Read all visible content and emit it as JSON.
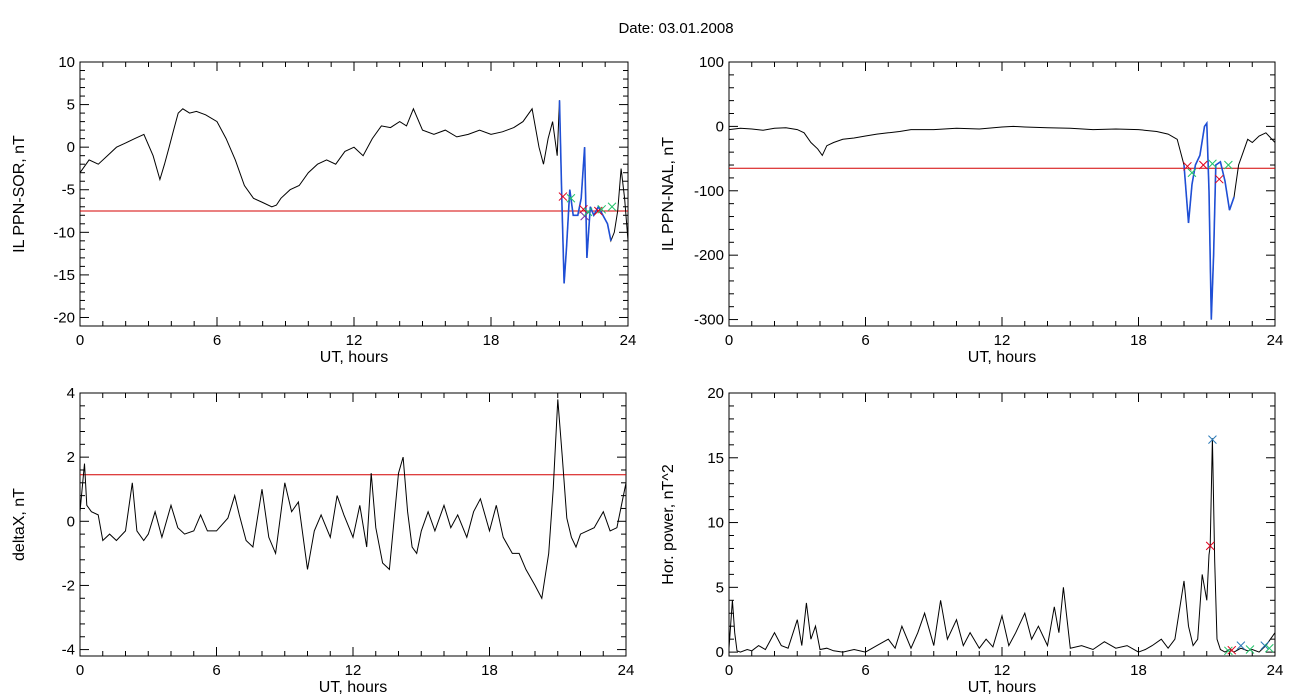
{
  "figure": {
    "title": "Date:  03.01.2008"
  },
  "colors": {
    "trace": "#000000",
    "threshold": "#d40000",
    "highlight": "#1f4fd6",
    "marker_red": "#e0001b",
    "marker_green": "#22c46a",
    "marker_blue": "#2a7ab8"
  },
  "chart_data": [
    {
      "type": "line",
      "xlabel": "UT, hours",
      "ylabel": "IL PPN-SOR, nT",
      "xlim": [
        0,
        24
      ],
      "ylim": [
        -21,
        10
      ],
      "xticks": [
        0,
        6,
        12,
        18,
        24
      ],
      "yticks": [
        10,
        5,
        0,
        -5,
        -10,
        -15,
        -20
      ],
      "threshold": -7.5,
      "series": [
        {
          "x": [
            0,
            0.4,
            0.8,
            1.2,
            1.6,
            2.0,
            2.4,
            2.8,
            3.2,
            3.5,
            3.7,
            3.9,
            4.1,
            4.3,
            4.5,
            4.8,
            5.1,
            5.5,
            6.0,
            6.4,
            6.8,
            7.2,
            7.6,
            8.0,
            8.4,
            8.6,
            8.8,
            9.2,
            9.6,
            10.0,
            10.4,
            10.8,
            11.2,
            11.6,
            12.0,
            12.4,
            12.8,
            13.2,
            13.6,
            14.0,
            14.3,
            14.6,
            15.0,
            15.5,
            16.0,
            16.5,
            17.0,
            17.5,
            18.0,
            18.5,
            19.0,
            19.4,
            19.8,
            20.1,
            20.3,
            20.5,
            20.7,
            20.9,
            21.0,
            21.1,
            21.2,
            21.3,
            21.45,
            21.6,
            21.8,
            21.95,
            22.1,
            22.2,
            22.35,
            22.5,
            22.7,
            22.9,
            23.1,
            23.25,
            23.4,
            23.55,
            23.7,
            23.85,
            24.0
          ],
          "y": [
            -3,
            -1.5,
            -2,
            -1,
            0,
            0.5,
            1,
            1.5,
            -1,
            -3.8,
            -2,
            0,
            2,
            4,
            4.5,
            4,
            4.2,
            3.8,
            3,
            1,
            -1.5,
            -4.5,
            -6,
            -6.5,
            -7,
            -6.8,
            -6,
            -5,
            -4.5,
            -3,
            -2,
            -1.5,
            -2,
            -0.5,
            0,
            -1,
            1,
            2.5,
            2.3,
            3,
            2.5,
            4.5,
            2,
            1.5,
            2,
            1.2,
            1.5,
            2,
            1.5,
            1.8,
            2.3,
            3,
            4.5,
            0,
            -2,
            1,
            3,
            -1,
            5.5,
            -6,
            -16,
            -12,
            -5,
            -8,
            -8,
            -6,
            0,
            -13,
            -7,
            -8,
            -7,
            -8,
            -9,
            -11,
            -10,
            -7.5,
            -2.5,
            -6,
            -11
          ]
        }
      ],
      "highlight": {
        "x_start": 21.0,
        "x_end": 23.3
      },
      "markers": [
        {
          "x": 21.15,
          "y": -5.8,
          "color": "red"
        },
        {
          "x": 21.5,
          "y": -6,
          "color": "green"
        },
        {
          "x": 22.05,
          "y": -7.3,
          "color": "red"
        },
        {
          "x": 22.1,
          "y": -8.1,
          "color": "purple"
        },
        {
          "x": 22.25,
          "y": -7.6,
          "color": "green"
        },
        {
          "x": 22.7,
          "y": -7.5,
          "color": "red"
        },
        {
          "x": 22.85,
          "y": -7.3,
          "color": "green"
        },
        {
          "x": 23.3,
          "y": -7,
          "color": "green"
        }
      ]
    },
    {
      "type": "line",
      "xlabel": "UT, hours",
      "ylabel": "IL PPN-NAL, nT",
      "xlim": [
        0,
        24
      ],
      "ylim": [
        -310,
        100
      ],
      "xticks": [
        0,
        6,
        12,
        18,
        24
      ],
      "yticks": [
        100,
        0,
        -100,
        -200,
        -300
      ],
      "threshold": -65,
      "series": [
        {
          "x": [
            0,
            0.5,
            1,
            1.5,
            2,
            2.5,
            3,
            3.3,
            3.6,
            3.9,
            4.1,
            4.3,
            4.6,
            5,
            5.5,
            6,
            6.5,
            7,
            7.5,
            8,
            9,
            10,
            11,
            12,
            12.5,
            13,
            14,
            15,
            16,
            17,
            18,
            18.8,
            19.3,
            19.7,
            20,
            20.2,
            20.35,
            20.5,
            20.7,
            20.9,
            21.0,
            21.1,
            21.2,
            21.3,
            21.4,
            21.6,
            21.8,
            22.0,
            22.2,
            22.4,
            22.6,
            22.8,
            23.0,
            23.3,
            23.6,
            24
          ],
          "y": [
            -5,
            -3,
            -4,
            -6,
            -3,
            -2,
            -5,
            -10,
            -25,
            -35,
            -45,
            -30,
            -25,
            -20,
            -18,
            -15,
            -12,
            -10,
            -8,
            -5,
            -5,
            -3,
            -4,
            -1,
            0,
            -1,
            -2,
            -3,
            -5,
            -4,
            -5,
            -8,
            -12,
            -20,
            -60,
            -150,
            -90,
            -60,
            -45,
            0,
            5,
            -100,
            -300,
            -200,
            -60,
            -55,
            -85,
            -130,
            -110,
            -60,
            -40,
            -20,
            -25,
            -15,
            -10,
            -25
          ]
        }
      ],
      "highlight": {
        "x_start": 20.0,
        "x_end": 22.3
      },
      "markers": [
        {
          "x": 20.15,
          "y": -62,
          "color": "red"
        },
        {
          "x": 20.35,
          "y": -72,
          "color": "green"
        },
        {
          "x": 20.85,
          "y": -60,
          "color": "red"
        },
        {
          "x": 21.25,
          "y": -58,
          "color": "green"
        },
        {
          "x": 21.55,
          "y": -82,
          "color": "red"
        },
        {
          "x": 21.95,
          "y": -60,
          "color": "green"
        }
      ]
    },
    {
      "type": "line",
      "xlabel": "UT, hours",
      "ylabel": "deltaX, nT",
      "xlim": [
        0,
        24
      ],
      "ylim": [
        -4.2,
        4
      ],
      "xticks": [
        0,
        6,
        12,
        18,
        24
      ],
      "yticks": [
        4,
        2,
        0,
        -2,
        -4
      ],
      "threshold": 1.45,
      "series": [
        {
          "x": [
            0,
            0.2,
            0.3,
            0.5,
            0.8,
            1,
            1.3,
            1.6,
            2,
            2.3,
            2.5,
            2.8,
            3,
            3.3,
            3.6,
            4,
            4.3,
            4.6,
            5,
            5.3,
            5.6,
            6,
            6.5,
            6.8,
            7,
            7.3,
            7.6,
            8,
            8.3,
            8.6,
            9,
            9.3,
            9.6,
            10,
            10.3,
            10.6,
            11,
            11.3,
            11.6,
            12,
            12.3,
            12.6,
            12.8,
            13,
            13.3,
            13.6,
            14,
            14.2,
            14.4,
            14.6,
            14.8,
            15,
            15.3,
            15.6,
            16,
            16.3,
            16.6,
            17,
            17.3,
            17.6,
            18,
            18.3,
            18.6,
            19,
            19.3,
            19.6,
            20,
            20.3,
            20.6,
            20.8,
            21,
            21.2,
            21.4,
            21.6,
            21.8,
            22,
            22.3,
            22.6,
            23,
            23.3,
            23.6,
            24
          ],
          "y": [
            0.3,
            1.8,
            0.5,
            0.3,
            0.2,
            -0.6,
            -0.4,
            -0.6,
            -0.3,
            1.2,
            -0.3,
            -0.6,
            -0.4,
            0.3,
            -0.5,
            0.5,
            -0.2,
            -0.4,
            -0.3,
            0.2,
            -0.3,
            -0.3,
            0.1,
            0.8,
            0.2,
            -0.6,
            -0.8,
            1,
            -0.5,
            -1,
            1.2,
            0.3,
            0.6,
            -1.5,
            -0.3,
            0.2,
            -0.5,
            0.8,
            0.2,
            -0.5,
            0.5,
            -0.8,
            1.5,
            -0.2,
            -1.3,
            -1.5,
            1.5,
            2,
            0.3,
            -0.8,
            -1,
            -0.3,
            0.3,
            -0.3,
            0.5,
            -0.2,
            0.2,
            -0.5,
            0.3,
            0.7,
            -0.3,
            0.5,
            -0.5,
            -1,
            -1,
            -1.5,
            -2,
            -2.4,
            -1,
            1,
            3.8,
            2,
            0.1,
            -0.5,
            -0.8,
            -0.4,
            -0.3,
            -0.2,
            0.3,
            -0.3,
            -0.2,
            1.2
          ]
        }
      ],
      "highlight": null,
      "markers": []
    },
    {
      "type": "line",
      "xlabel": "UT, hours",
      "ylabel": "Hor. power, nT^2",
      "xlim": [
        0,
        24
      ],
      "ylim": [
        -0.3,
        20
      ],
      "xticks": [
        0,
        6,
        12,
        18,
        24
      ],
      "yticks": [
        20,
        15,
        10,
        5,
        0
      ],
      "threshold": null,
      "series": [
        {
          "x": [
            0,
            0.15,
            0.25,
            0.35,
            0.5,
            0.8,
            1,
            1.3,
            1.6,
            2,
            2.3,
            2.6,
            3,
            3.2,
            3.4,
            3.6,
            3.8,
            4,
            4.3,
            4.6,
            5,
            5.5,
            6,
            6.5,
            7,
            7.3,
            7.6,
            8,
            8.3,
            8.6,
            9,
            9.3,
            9.6,
            10,
            10.3,
            10.6,
            11,
            11.3,
            11.6,
            12,
            12.3,
            12.6,
            13,
            13.3,
            13.6,
            14,
            14.3,
            14.5,
            14.7,
            15,
            15.5,
            16,
            16.5,
            17,
            17.5,
            18,
            18.3,
            18.6,
            19,
            19.3,
            19.6,
            20,
            20.2,
            20.4,
            20.6,
            20.8,
            21,
            21.1,
            21.15,
            21.25,
            21.35,
            21.45,
            21.6,
            21.8,
            22,
            22.2,
            22.5,
            22.8,
            23,
            23.3,
            23.6,
            24
          ],
          "y": [
            0.3,
            4,
            1.5,
            0.1,
            0,
            0.2,
            0.1,
            0.5,
            0.2,
            1.5,
            0.5,
            0.3,
            2.5,
            0.5,
            3.8,
            1,
            2,
            0.2,
            0.3,
            0.1,
            0,
            0.2,
            0,
            0.5,
            1,
            0.3,
            2,
            0.3,
            1.5,
            3,
            0.5,
            4,
            1,
            2.5,
            0.5,
            1.5,
            0.3,
            1,
            0.4,
            2.8,
            0.5,
            1.5,
            3,
            1,
            2,
            0.5,
            3.5,
            1.5,
            5,
            0.3,
            0.5,
            0.2,
            0.8,
            0.3,
            0.5,
            0,
            0.2,
            0.5,
            1,
            0.3,
            1,
            5.5,
            2,
            0.5,
            1,
            6,
            4,
            7.5,
            8.2,
            16.5,
            7,
            1,
            0.2,
            0,
            0.2,
            0,
            0.3,
            0.1,
            0.2,
            0,
            0.5,
            1.5
          ]
        }
      ],
      "highlight": null,
      "markers": [
        {
          "x": 21.15,
          "y": 8.2,
          "color": "red"
        },
        {
          "x": 21.25,
          "y": 16.4,
          "color": "blue"
        },
        {
          "x": 21.95,
          "y": 0.1,
          "color": "green"
        },
        {
          "x": 22.1,
          "y": 0.15,
          "color": "red"
        },
        {
          "x": 22.5,
          "y": 0.5,
          "color": "blue"
        },
        {
          "x": 22.9,
          "y": 0.2,
          "color": "green"
        },
        {
          "x": 23.55,
          "y": 0.5,
          "color": "blue"
        },
        {
          "x": 23.75,
          "y": 0.3,
          "color": "green"
        }
      ]
    }
  ]
}
